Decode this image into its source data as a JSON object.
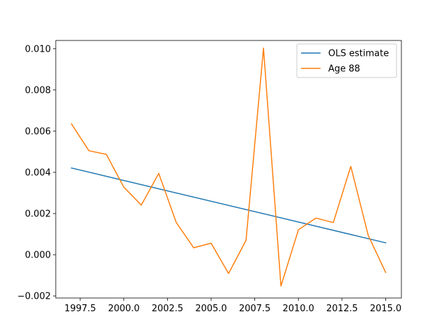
{
  "chart_data": {
    "type": "line",
    "title": "",
    "xlabel": "",
    "ylabel": "",
    "xlim": [
      1996.1,
      2015.9
    ],
    "ylim": [
      -0.0021,
      0.0104
    ],
    "grid": false,
    "legend_position": "top-right",
    "x_ticks": [
      1997.5,
      2000.0,
      2002.5,
      2005.0,
      2007.5,
      2010.0,
      2012.5,
      2015.0
    ],
    "x_tick_labels": [
      "1997.5",
      "2000.0",
      "2002.5",
      "2005.0",
      "2007.5",
      "2010.0",
      "2012.5",
      "2015.0"
    ],
    "y_ticks": [
      -0.002,
      0.0,
      0.002,
      0.004,
      0.006,
      0.008,
      0.01
    ],
    "y_tick_labels": [
      "−0.002",
      "0.000",
      "0.002",
      "0.004",
      "0.006",
      "0.008",
      "0.010"
    ],
    "series": [
      {
        "name": "OLS estimate",
        "color": "#1f77b4",
        "x": [
          1997,
          2015
        ],
        "y": [
          0.00421,
          0.00058
        ]
      },
      {
        "name": "Age 88",
        "color": "#ff7f0e",
        "x": [
          1997,
          1998,
          1999,
          2000,
          2001,
          2002,
          2003,
          2004,
          2005,
          2006,
          2007,
          2008,
          2009,
          2010,
          2011,
          2012,
          2013,
          2014,
          2015
        ],
        "y": [
          0.00635,
          0.00505,
          0.00487,
          0.00328,
          0.00241,
          0.00395,
          0.00157,
          0.00034,
          0.00056,
          -0.00091,
          0.0007,
          0.01003,
          -0.00152,
          0.00121,
          0.00178,
          0.00156,
          0.00429,
          0.00094,
          -0.00086
        ]
      }
    ]
  }
}
